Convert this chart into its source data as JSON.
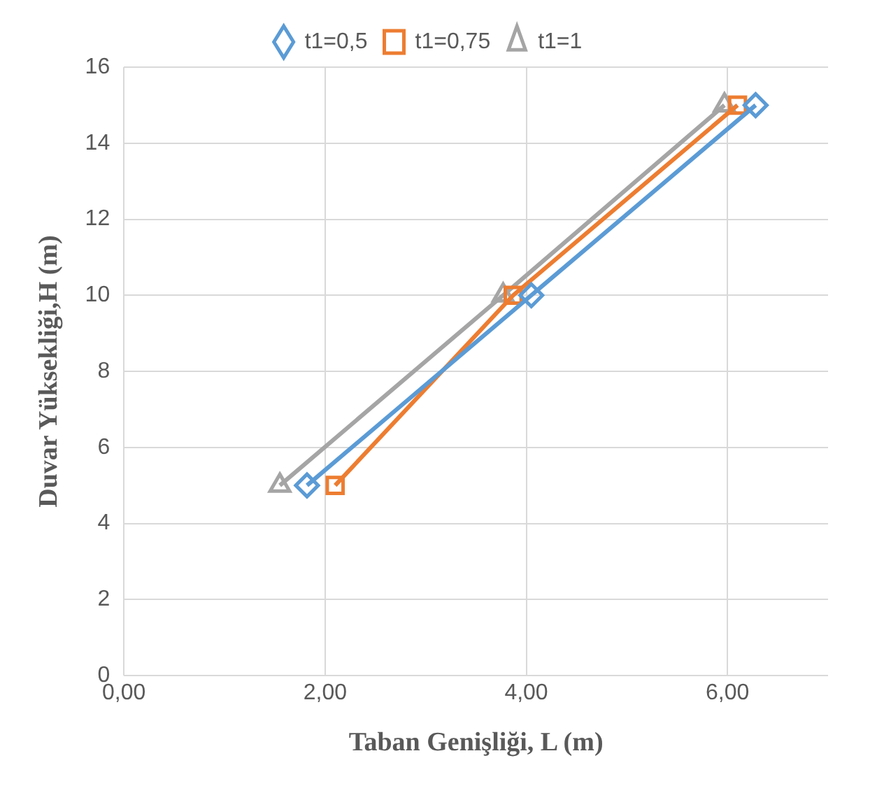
{
  "chart_data": {
    "type": "line",
    "xlabel": "Taban Genişliği, L (m)",
    "ylabel": "Duvar Yüksekliği,H (m)",
    "series": [
      {
        "name": "t1=0,5",
        "color": "#5b9bd5",
        "marker": "diamond",
        "x": [
          1.82,
          4.05,
          6.28
        ],
        "values": [
          5,
          10,
          15
        ]
      },
      {
        "name": "t1=0,75",
        "color": "#ed7d31",
        "marker": "square",
        "x": [
          2.1,
          3.87,
          6.1
        ],
        "values": [
          5,
          10,
          15
        ]
      },
      {
        "name": "t1=1",
        "color": "#a5a5a5",
        "marker": "triangle",
        "x": [
          1.55,
          3.77,
          5.97
        ],
        "values": [
          5,
          10,
          15
        ]
      }
    ],
    "xlim": [
      0,
      7
    ],
    "xticks": [
      {
        "value": 0,
        "label": "0,00"
      },
      {
        "value": 2,
        "label": "2,00"
      },
      {
        "value": 4,
        "label": "4,00"
      },
      {
        "value": 6,
        "label": "6,00"
      }
    ],
    "ylim": [
      0,
      16
    ],
    "yticks": [
      0,
      2,
      4,
      6,
      8,
      10,
      12,
      14,
      16
    ],
    "grid": true,
    "legend": "top"
  }
}
